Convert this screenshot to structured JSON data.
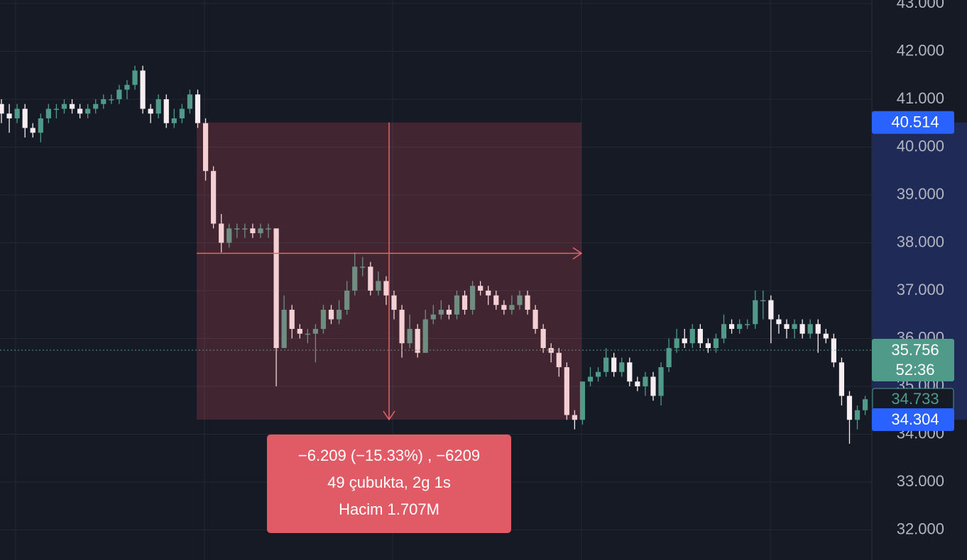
{
  "chart_data": {
    "type": "candlestick",
    "open": [
      40.9,
      40.7,
      40.6,
      40.8,
      40.4,
      40.3,
      40.6,
      40.8,
      40.8,
      40.9,
      40.8,
      40.7,
      40.8,
      40.9,
      41.0,
      41.0,
      41.2,
      41.3,
      41.6,
      40.8,
      40.7,
      41.0,
      40.5,
      40.6,
      40.8,
      41.1,
      40.5,
      39.5,
      38.4,
      38.0,
      38.3,
      38.3,
      38.3,
      38.2,
      38.3,
      38.3,
      35.8,
      36.6,
      36.2,
      36.1,
      36.1,
      36.2,
      36.6,
      36.4,
      36.6,
      37.0,
      37.5,
      37.5,
      37.0,
      37.2,
      36.9,
      36.6,
      35.9,
      36.2,
      35.7,
      36.4,
      36.5,
      36.6,
      36.5,
      36.9,
      36.6,
      37.1,
      37.0,
      36.9,
      36.7,
      36.6,
      36.7,
      36.9,
      36.6,
      36.2,
      35.8,
      35.7,
      35.4,
      34.4,
      34.3,
      35.1,
      35.2,
      35.3,
      35.6,
      35.3,
      35.5,
      35.1,
      35.0,
      35.2,
      34.8,
      35.4,
      35.8,
      36.0,
      35.9,
      36.2,
      35.9,
      35.8,
      36.0,
      36.3,
      36.2,
      36.3,
      36.3,
      36.8,
      36.8,
      36.4,
      36.3,
      36.2,
      36.3,
      36.1,
      36.3,
      36.1,
      36.0,
      35.5,
      34.8,
      34.3,
      34.5
    ],
    "high": [
      41.0,
      40.9,
      40.9,
      40.9,
      40.5,
      40.7,
      40.9,
      40.9,
      41.0,
      41.0,
      40.9,
      40.9,
      41.0,
      41.1,
      41.1,
      41.3,
      41.4,
      41.7,
      41.7,
      40.9,
      41.1,
      41.1,
      40.8,
      40.9,
      41.2,
      41.2,
      40.6,
      39.6,
      38.6,
      38.4,
      38.4,
      38.4,
      38.4,
      38.4,
      38.4,
      38.3,
      36.9,
      36.7,
      36.3,
      36.2,
      36.3,
      36.7,
      36.7,
      36.8,
      37.2,
      37.8,
      37.7,
      37.6,
      37.4,
      37.3,
      37.0,
      36.7,
      36.5,
      36.3,
      36.6,
      36.7,
      36.8,
      36.7,
      37.0,
      37.0,
      37.2,
      37.2,
      37.1,
      37.0,
      36.8,
      36.9,
      37.0,
      37.0,
      36.7,
      36.3,
      35.9,
      35.8,
      35.5,
      34.5,
      35.1,
      35.4,
      35.4,
      35.8,
      35.7,
      35.6,
      35.6,
      35.2,
      35.3,
      35.3,
      35.5,
      36.0,
      36.2,
      36.2,
      36.3,
      36.3,
      36.0,
      36.1,
      36.5,
      36.4,
      36.4,
      36.4,
      37.0,
      37.0,
      36.9,
      36.5,
      36.4,
      36.4,
      36.4,
      36.4,
      36.4,
      36.2,
      36.1,
      35.6,
      34.9,
      34.6,
      34.8
    ],
    "low": [
      40.5,
      40.3,
      40.5,
      40.2,
      40.2,
      40.1,
      40.5,
      40.6,
      40.7,
      40.7,
      40.6,
      40.6,
      40.7,
      40.8,
      40.9,
      40.9,
      41.0,
      41.2,
      40.7,
      40.5,
      40.6,
      40.4,
      40.4,
      40.5,
      40.7,
      40.4,
      39.3,
      38.3,
      37.8,
      37.9,
      38.1,
      38.1,
      38.1,
      38.1,
      38.1,
      35.0,
      35.8,
      36.0,
      36.0,
      35.9,
      35.5,
      36.1,
      36.3,
      36.3,
      36.5,
      36.9,
      37.3,
      36.9,
      36.9,
      36.7,
      36.4,
      35.6,
      35.8,
      35.6,
      35.7,
      36.3,
      36.4,
      36.4,
      36.4,
      36.5,
      36.5,
      36.9,
      36.7,
      36.6,
      36.5,
      36.5,
      36.6,
      36.5,
      36.1,
      35.7,
      35.5,
      35.2,
      34.3,
      34.1,
      34.2,
      35.0,
      35.1,
      35.2,
      35.2,
      35.2,
      35.0,
      34.9,
      34.8,
      34.7,
      34.6,
      35.3,
      35.7,
      35.8,
      35.8,
      35.8,
      35.7,
      35.7,
      35.9,
      36.1,
      36.1,
      36.2,
      36.2,
      36.4,
      35.9,
      36.1,
      36.0,
      36.0,
      36.0,
      36.0,
      35.7,
      35.9,
      35.4,
      34.6,
      33.8,
      34.1,
      34.4
    ],
    "close": [
      40.7,
      40.6,
      40.8,
      40.4,
      40.3,
      40.6,
      40.8,
      40.8,
      40.9,
      40.8,
      40.7,
      40.8,
      40.9,
      41.0,
      41.0,
      41.2,
      41.3,
      41.6,
      40.8,
      40.7,
      41.0,
      40.5,
      40.6,
      40.8,
      41.1,
      40.5,
      39.5,
      38.4,
      38.0,
      38.3,
      38.3,
      38.3,
      38.2,
      38.3,
      38.3,
      35.8,
      36.6,
      36.2,
      36.1,
      36.1,
      36.2,
      36.6,
      36.4,
      36.6,
      37.0,
      37.5,
      37.5,
      37.0,
      37.2,
      36.9,
      36.6,
      35.9,
      36.2,
      35.7,
      36.4,
      36.5,
      36.6,
      36.5,
      36.9,
      36.6,
      37.1,
      37.0,
      36.9,
      36.7,
      36.6,
      36.7,
      36.9,
      36.6,
      36.2,
      35.8,
      35.7,
      35.4,
      34.4,
      34.3,
      35.1,
      35.2,
      35.3,
      35.6,
      35.3,
      35.5,
      35.1,
      35.0,
      35.2,
      34.8,
      35.4,
      35.8,
      36.0,
      35.9,
      36.2,
      35.9,
      35.8,
      36.0,
      36.3,
      36.2,
      36.3,
      36.3,
      36.8,
      36.8,
      36.4,
      36.3,
      36.2,
      36.3,
      36.1,
      36.3,
      36.1,
      36.0,
      35.5,
      34.8,
      34.3,
      34.5,
      34.73
    ],
    "up_color": "#4f9a89",
    "down_color": "#f6eef1",
    "ylim": [
      31.37,
      43.074
    ],
    "yticks": [
      {
        "value": 32,
        "label": "32.000"
      },
      {
        "value": 33,
        "label": "33.000"
      },
      {
        "value": 34,
        "label": "34.000"
      },
      {
        "value": 35,
        "label": "35.000"
      },
      {
        "value": 36,
        "label": "36.000"
      },
      {
        "value": 37,
        "label": "37.000"
      },
      {
        "value": 38,
        "label": "38.000"
      },
      {
        "value": 39,
        "label": "39.000"
      },
      {
        "value": 40,
        "label": "40.000"
      },
      {
        "value": 41,
        "label": "41.000"
      },
      {
        "value": 42,
        "label": "42.000"
      },
      {
        "value": 43,
        "label": "43.000"
      }
    ],
    "grid": true,
    "price_labels": [
      {
        "value": 40.514,
        "label": "40.514",
        "style": "blue"
      },
      {
        "value": 35.756,
        "label": "35.756",
        "sub": "52:36",
        "style": "teal"
      },
      {
        "value": 34.733,
        "label": "34.733",
        "style": "outline"
      },
      {
        "value": 34.304,
        "label": "34.304",
        "style": "blue"
      }
    ],
    "measure": {
      "from": 40.514,
      "to": 34.304,
      "lines": [
        "−6.209 (−15.33%) , −6209",
        "49 çubukta, 2g 1s",
        "Hacim 1.707M"
      ]
    }
  }
}
